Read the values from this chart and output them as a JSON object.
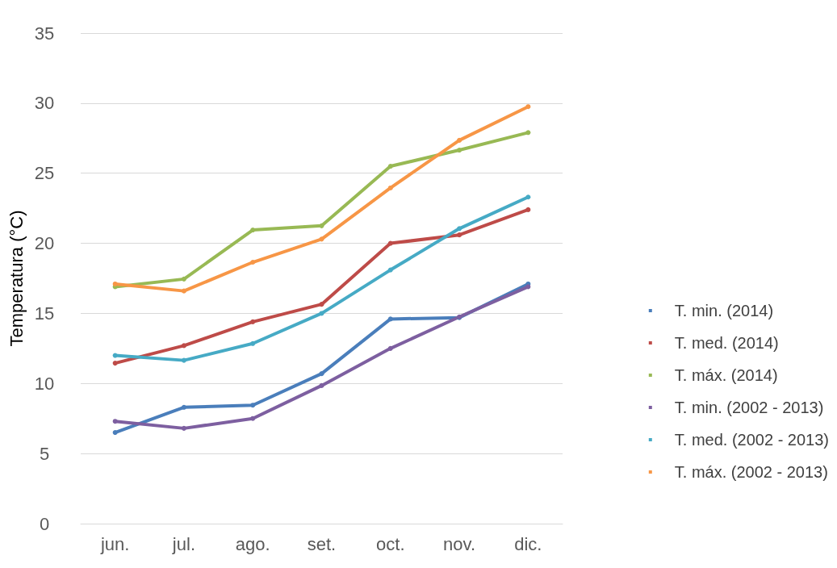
{
  "chart_data": {
    "type": "line",
    "ylabel": "Temperatura (°C)",
    "categories": [
      "jun.",
      "jul.",
      "ago.",
      "set.",
      "oct.",
      "nov.",
      "dic."
    ],
    "series": [
      {
        "name": "T. min. (2014)",
        "color": "#4a7ebb",
        "values": [
          6.5,
          8.3,
          8.45,
          10.7,
          14.6,
          14.7,
          17.1
        ]
      },
      {
        "name": "T. med. (2014)",
        "color": "#be4b48",
        "values": [
          11.45,
          12.7,
          14.4,
          15.65,
          20.0,
          20.6,
          22.4
        ]
      },
      {
        "name": "T. máx. (2014)",
        "color": "#98b954",
        "values": [
          16.9,
          17.45,
          20.95,
          21.25,
          25.5,
          26.65,
          27.9
        ]
      },
      {
        "name": "T. min. (2002 - 2013)",
        "color": "#7d5fa0",
        "values": [
          7.3,
          6.8,
          7.5,
          9.85,
          12.5,
          14.75,
          16.9
        ]
      },
      {
        "name": "T. med. (2002 - 2013)",
        "color": "#46aac5",
        "values": [
          12.0,
          11.65,
          12.85,
          15.0,
          18.1,
          21.05,
          23.3
        ]
      },
      {
        "name": "T. máx. (2002 - 2013)",
        "color": "#f79646",
        "values": [
          17.1,
          16.6,
          18.65,
          20.3,
          23.95,
          27.35,
          29.75
        ]
      }
    ],
    "ylim": [
      0,
      35
    ],
    "yticks": [
      0,
      5,
      10,
      15,
      20,
      25,
      30,
      35
    ],
    "grid": "y",
    "legend": "right",
    "marker": "circle",
    "line_style": "solid"
  }
}
